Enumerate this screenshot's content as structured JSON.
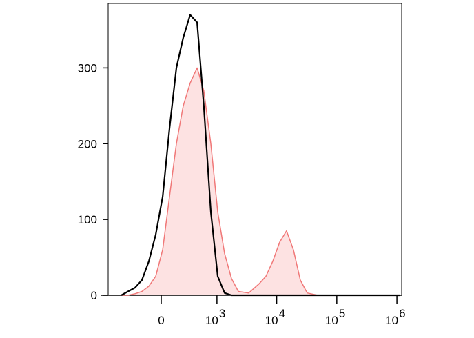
{
  "chart_data": {
    "type": "histogram",
    "xscale": "arcsinh",
    "xscale_cofactor": 240,
    "xlim": [
      -900,
      1200000
    ],
    "ylim": [
      0,
      385
    ],
    "xticks": [
      0,
      {
        "value": 1000,
        "label": "10",
        "exponent": "3"
      },
      {
        "value": 10000,
        "label": "10",
        "exponent": "4"
      },
      {
        "value": 100000,
        "label": "10",
        "exponent": "5"
      },
      {
        "value": 1000000,
        "label": "10",
        "exponent": "6"
      }
    ],
    "yticks": [
      0,
      100,
      200,
      300
    ],
    "x": [
      -528,
      -394,
      -283,
      -194,
      -118,
      -51,
      13,
      77,
      147,
      228,
      324,
      444,
      590,
      785,
      1032,
      1349,
      1764,
      2299,
      3420,
      5090,
      6620,
      8620,
      11200,
      14600,
      19000,
      24700,
      32200,
      48000,
      137000,
      514000,
      1130000
    ],
    "series": [
      {
        "color": "#f07878",
        "fill": "#fde2e2",
        "values": [
          0,
          0,
          2,
          5,
          12,
          25,
          60,
          130,
          200,
          250,
          280,
          300,
          270,
          200,
          110,
          55,
          22,
          5,
          3,
          15,
          25,
          45,
          70,
          85,
          60,
          20,
          3,
          0,
          0,
          0,
          0
        ]
      },
      {
        "color": "#000000",
        "values": [
          0,
          5,
          10,
          20,
          45,
          80,
          130,
          220,
          300,
          340,
          370,
          360,
          250,
          110,
          25,
          3,
          0,
          0,
          0,
          0,
          0,
          0,
          0,
          0,
          0,
          0,
          0,
          0,
          0,
          0,
          0
        ]
      }
    ]
  }
}
